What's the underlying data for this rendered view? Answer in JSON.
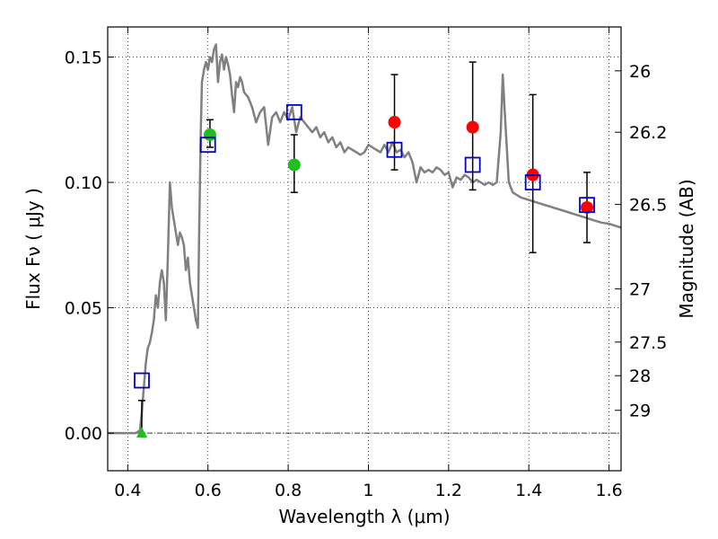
{
  "chart_data": {
    "type": "scatter",
    "xlabel": "Wavelength  λ (μm)",
    "ylabel": "Flux  Fν  ( μJy )",
    "ylabel_right": "Magnitude (AB)",
    "xlim": [
      0.35,
      1.63
    ],
    "ylim": [
      -0.015,
      0.162
    ],
    "x_ticks": [
      0.4,
      0.6,
      0.8,
      1.0,
      1.2,
      1.4,
      1.6
    ],
    "x_tick_labels": [
      "0.4",
      "0.6",
      "0.8",
      "1",
      "1.2",
      "1.4",
      "1.6"
    ],
    "y_ticks": [
      0.0,
      0.05,
      0.1,
      0.15
    ],
    "y_tick_labels": [
      "0.00",
      "0.05",
      "0.10",
      "0.15"
    ],
    "right_ticks": [
      {
        "label": "26",
        "flux": 0.1445
      },
      {
        "label": "26.2",
        "flux": 0.12
      },
      {
        "label": "26.5",
        "flux": 0.0912
      },
      {
        "label": "27",
        "flux": 0.0575
      },
      {
        "label": "27.5",
        "flux": 0.0363
      },
      {
        "label": "28",
        "flux": 0.0229
      },
      {
        "label": "29",
        "flux": 0.0091
      }
    ],
    "grid": true,
    "zero_line": true,
    "colors": {
      "model": "#808080",
      "observed_green": "#1fbf1f",
      "observed_red": "#ff0000",
      "model_photometry": "#0000cc",
      "error_bar": "#000000"
    },
    "series": [
      {
        "kind": "model_spectrum",
        "x": [
          0.35,
          0.42,
          0.43,
          0.435,
          0.44,
          0.445,
          0.45,
          0.455,
          0.46,
          0.465,
          0.47,
          0.475,
          0.48,
          0.485,
          0.49,
          0.495,
          0.5,
          0.505,
          0.51,
          0.515,
          0.52,
          0.525,
          0.53,
          0.535,
          0.54,
          0.545,
          0.55,
          0.555,
          0.56,
          0.565,
          0.57,
          0.575,
          0.578,
          0.582,
          0.585,
          0.59,
          0.595,
          0.6,
          0.605,
          0.61,
          0.615,
          0.62,
          0.625,
          0.63,
          0.635,
          0.64,
          0.645,
          0.65,
          0.655,
          0.66,
          0.665,
          0.67,
          0.675,
          0.68,
          0.685,
          0.69,
          0.695,
          0.7,
          0.71,
          0.72,
          0.73,
          0.74,
          0.75,
          0.76,
          0.77,
          0.78,
          0.79,
          0.8,
          0.81,
          0.82,
          0.83,
          0.84,
          0.85,
          0.86,
          0.87,
          0.88,
          0.89,
          0.9,
          0.91,
          0.92,
          0.93,
          0.94,
          0.95,
          0.96,
          0.97,
          0.98,
          0.99,
          1.0,
          1.01,
          1.02,
          1.03,
          1.04,
          1.05,
          1.06,
          1.07,
          1.08,
          1.09,
          1.1,
          1.11,
          1.12,
          1.13,
          1.14,
          1.15,
          1.16,
          1.17,
          1.18,
          1.19,
          1.2,
          1.21,
          1.22,
          1.23,
          1.24,
          1.25,
          1.26,
          1.27,
          1.28,
          1.29,
          1.3,
          1.31,
          1.32,
          1.33,
          1.335,
          1.34,
          1.35,
          1.36,
          1.37,
          1.38,
          1.4,
          1.42,
          1.44,
          1.46,
          1.48,
          1.5,
          1.52,
          1.54,
          1.56,
          1.58,
          1.6,
          1.62,
          1.63
        ],
        "values": [
          0.0,
          0.0,
          0.001,
          0.008,
          0.018,
          0.028,
          0.034,
          0.036,
          0.04,
          0.045,
          0.055,
          0.05,
          0.06,
          0.065,
          0.06,
          0.045,
          0.07,
          0.1,
          0.09,
          0.085,
          0.08,
          0.075,
          0.08,
          0.078,
          0.075,
          0.065,
          0.07,
          0.06,
          0.055,
          0.05,
          0.045,
          0.042,
          0.08,
          0.12,
          0.14,
          0.145,
          0.148,
          0.145,
          0.15,
          0.148,
          0.153,
          0.155,
          0.14,
          0.148,
          0.151,
          0.145,
          0.15,
          0.147,
          0.143,
          0.135,
          0.128,
          0.14,
          0.138,
          0.142,
          0.14,
          0.136,
          0.135,
          0.134,
          0.13,
          0.124,
          0.128,
          0.13,
          0.115,
          0.126,
          0.128,
          0.124,
          0.128,
          0.125,
          0.13,
          0.12,
          0.126,
          0.124,
          0.122,
          0.12,
          0.122,
          0.118,
          0.12,
          0.116,
          0.118,
          0.114,
          0.116,
          0.112,
          0.114,
          0.113,
          0.112,
          0.111,
          0.112,
          0.115,
          0.114,
          0.113,
          0.112,
          0.115,
          0.112,
          0.116,
          0.112,
          0.113,
          0.11,
          0.112,
          0.108,
          0.1,
          0.106,
          0.104,
          0.105,
          0.104,
          0.106,
          0.105,
          0.103,
          0.104,
          0.098,
          0.102,
          0.101,
          0.103,
          0.102,
          0.1,
          0.101,
          0.1,
          0.099,
          0.1,
          0.099,
          0.1,
          0.12,
          0.143,
          0.128,
          0.1,
          0.096,
          0.095,
          0.094,
          0.093,
          0.092,
          0.091,
          0.09,
          0.089,
          0.088,
          0.087,
          0.086,
          0.085,
          0.084,
          0.0835,
          0.0825,
          0.082
        ]
      },
      {
        "kind": "observed_detection",
        "color": "green",
        "x": [
          0.605,
          0.815
        ],
        "values": [
          0.119,
          0.107
        ],
        "err_low": [
          0.114,
          0.096
        ],
        "err_high": [
          0.125,
          0.119
        ]
      },
      {
        "kind": "observed_detection",
        "color": "red",
        "x": [
          1.065,
          1.26,
          1.41,
          1.545
        ],
        "values": [
          0.124,
          0.122,
          0.103,
          0.09
        ],
        "err_low": [
          0.105,
          0.097,
          0.072,
          0.076
        ],
        "err_high": [
          0.143,
          0.148,
          0.135,
          0.104
        ]
      },
      {
        "kind": "upper_limit",
        "color": "green",
        "x": [
          0.435
        ],
        "values": [
          0.0
        ],
        "err_low": [
          0.0
        ],
        "err_high": [
          0.013
        ]
      },
      {
        "kind": "model_photometry",
        "color": "blue",
        "x": [
          0.435,
          0.6,
          0.815,
          1.065,
          1.26,
          1.41,
          1.545
        ],
        "values": [
          0.021,
          0.115,
          0.128,
          0.113,
          0.107,
          0.1,
          0.091
        ]
      }
    ]
  }
}
